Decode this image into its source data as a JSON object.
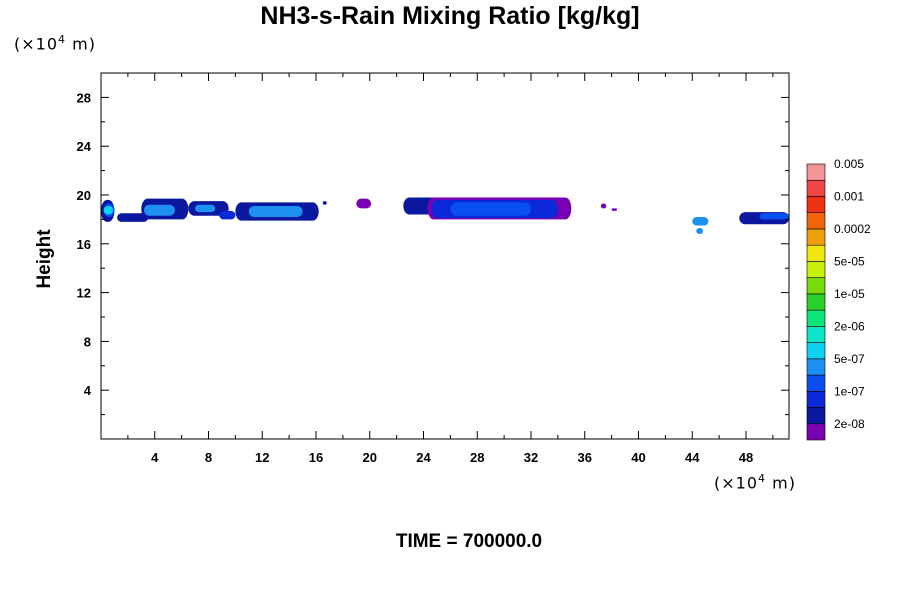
{
  "chart_data": {
    "type": "heatmap",
    "title": "NH3-s-Rain Mixing Ratio [kg/kg]",
    "ylabel": "Height",
    "xlabel": "",
    "x_unit": {
      "prefix": "(×10",
      "exp": "4",
      "suffix": " m)"
    },
    "y_unit": {
      "prefix": "(×10",
      "exp": "4",
      "suffix": " m)"
    },
    "footer": "TIME = 700000.0",
    "xlim": [
      0,
      51.2
    ],
    "ylim": [
      0,
      30
    ],
    "x_ticks": [
      4,
      8,
      12,
      16,
      20,
      24,
      28,
      32,
      36,
      40,
      44,
      48
    ],
    "y_ticks": [
      4,
      8,
      12,
      16,
      20,
      24,
      28
    ],
    "x_tick_labels": [
      "4",
      "8",
      "12",
      "16",
      "20",
      "24",
      "28",
      "32",
      "36",
      "40",
      "44",
      "48"
    ],
    "y_tick_labels": [
      "4",
      "8",
      "12",
      "16",
      "20",
      "24",
      "28"
    ],
    "grid": false,
    "legend_placement": "right",
    "colorbar": {
      "colors": [
        "#7a00b4",
        "#0a18a0",
        "#0a28d8",
        "#0a50f0",
        "#1e90f0",
        "#0ad2f0",
        "#0ae6c8",
        "#0ae678",
        "#28d228",
        "#78dc0a",
        "#c8f00a",
        "#f0e60a",
        "#f0a00a",
        "#f0640a",
        "#f03214",
        "#f04646",
        "#f09696"
      ],
      "labels": [
        "2e-08",
        "1e-07",
        "5e-07",
        "2e-06",
        "1e-05",
        "5e-05",
        "0.0002",
        "0.001",
        "0.005"
      ]
    },
    "cells": [
      {
        "x": [
          0,
          1.0
        ],
        "y": [
          17.8,
          19.6
        ],
        "level": 1
      },
      {
        "x": [
          0.2,
          1.0
        ],
        "y": [
          18.2,
          19.3
        ],
        "level": 3
      },
      {
        "x": [
          0.2,
          0.9
        ],
        "y": [
          18.4,
          19.1
        ],
        "level": 5
      },
      {
        "x": [
          1.2,
          3.5
        ],
        "y": [
          17.8,
          18.5
        ],
        "level": 1
      },
      {
        "x": [
          3.0,
          6.5
        ],
        "y": [
          18.0,
          19.7
        ],
        "level": 1
      },
      {
        "x": [
          3.2,
          5.5
        ],
        "y": [
          18.3,
          19.2
        ],
        "level": 4
      },
      {
        "x": [
          6.5,
          9.5
        ],
        "y": [
          18.3,
          19.5
        ],
        "level": 1
      },
      {
        "x": [
          7.0,
          8.5
        ],
        "y": [
          18.6,
          19.2
        ],
        "level": 4
      },
      {
        "x": [
          8.8,
          10.0
        ],
        "y": [
          18.0,
          18.7
        ],
        "level": 2
      },
      {
        "x": [
          10.0,
          16.2
        ],
        "y": [
          17.9,
          19.4
        ],
        "level": 1
      },
      {
        "x": [
          11.0,
          15.0
        ],
        "y": [
          18.2,
          19.1
        ],
        "level": 4
      },
      {
        "x": [
          16.5,
          16.8
        ],
        "y": [
          19.2,
          19.5
        ],
        "level": 1
      },
      {
        "x": [
          19.0,
          20.1
        ],
        "y": [
          18.9,
          19.7
        ],
        "level": 0
      },
      {
        "x": [
          22.5,
          25.5
        ],
        "y": [
          18.4,
          19.8
        ],
        "level": 1
      },
      {
        "x": [
          24.3,
          35.0
        ],
        "y": [
          18.0,
          19.8
        ],
        "level": 0
      },
      {
        "x": [
          24.6,
          34.0
        ],
        "y": [
          18.1,
          19.6
        ],
        "level": 2
      },
      {
        "x": [
          26.0,
          32.0
        ],
        "y": [
          18.3,
          19.4
        ],
        "level": 3
      },
      {
        "x": [
          37.2,
          37.6
        ],
        "y": [
          18.9,
          19.3
        ],
        "level": 0
      },
      {
        "x": [
          38.0,
          38.4
        ],
        "y": [
          18.7,
          18.9
        ],
        "level": 0
      },
      {
        "x": [
          44.0,
          45.2
        ],
        "y": [
          17.5,
          18.2
        ],
        "level": 4
      },
      {
        "x": [
          44.3,
          44.8
        ],
        "y": [
          16.8,
          17.3
        ],
        "level": 4
      },
      {
        "x": [
          47.5,
          51.2
        ],
        "y": [
          17.6,
          18.6
        ],
        "level": 1
      },
      {
        "x": [
          49.0,
          51.2
        ],
        "y": [
          18.0,
          18.5
        ],
        "level": 3
      }
    ]
  }
}
